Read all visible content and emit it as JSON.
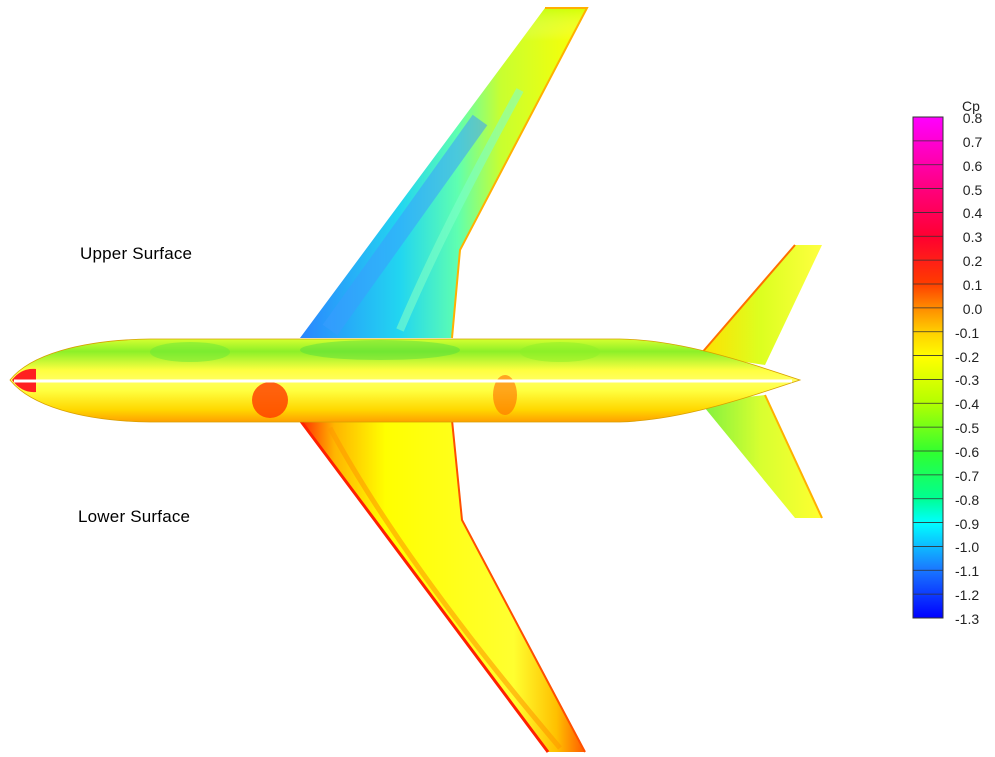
{
  "labels": {
    "upper": "Upper Surface",
    "lower": "Lower Surface"
  },
  "colorbar": {
    "title": "Cp",
    "min": -1.3,
    "max": 0.8,
    "ticks": [
      "0.8",
      "0.7",
      "0.6",
      "0.5",
      "0.4",
      "0.3",
      "0.2",
      "0.1",
      "0.0",
      "-0.1",
      "-0.2",
      "-0.3",
      "-0.4",
      "-0.5",
      "-0.6",
      "-0.7",
      "-0.8",
      "-0.9",
      "-1.0",
      "-1.1",
      "-1.2",
      "-1.3"
    ],
    "colors": {
      "0.8": "#ff00ff",
      "0.5": "#ff0060",
      "0.3": "#ff2a00",
      "0.1": "#ffb400",
      "0.0": "#ffff00",
      "-0.2": "#b4ff00",
      "-0.5": "#00ff44",
      "-0.9": "#00ffff",
      "-1.1": "#1a7cff",
      "-1.3": "#0000ff"
    }
  }
}
